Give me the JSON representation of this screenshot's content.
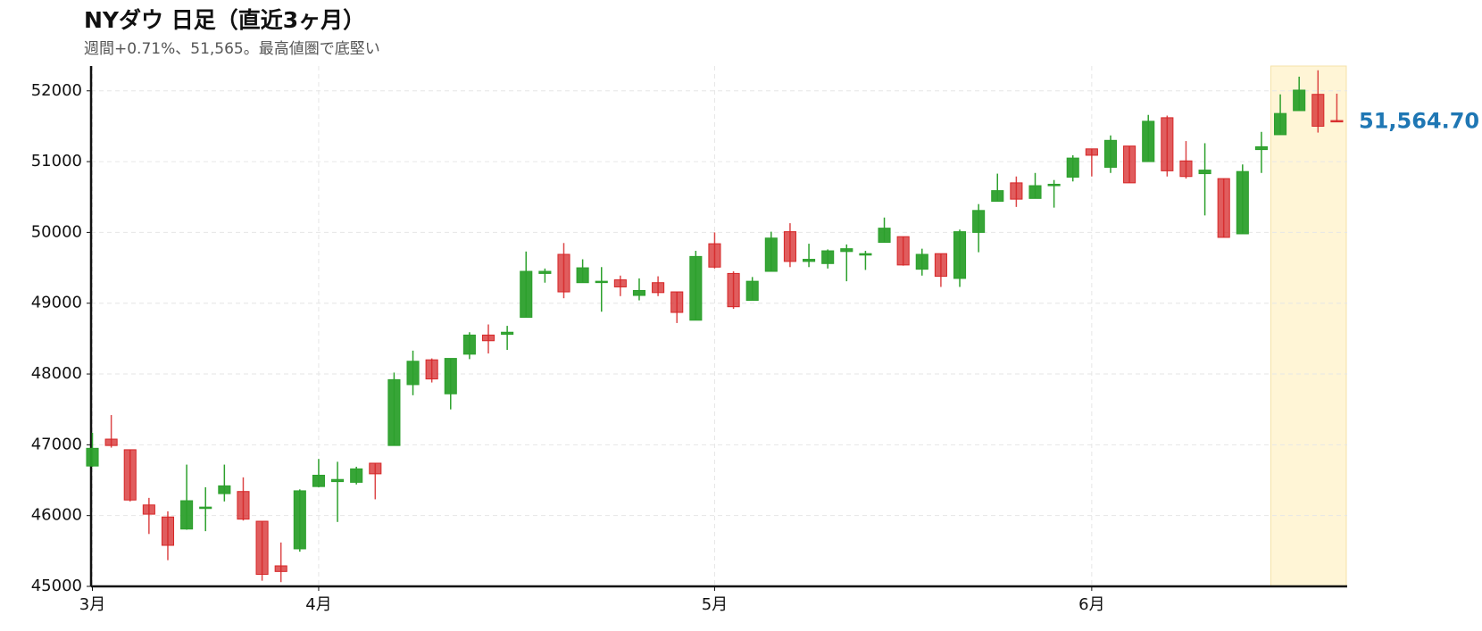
{
  "chart_data": {
    "type": "candlestick",
    "title": "NYダウ 日足（直近3ヶ月）",
    "subtitle": "週間+0.71%、51,565。最高値圏で底堅い",
    "categories": [
      "3月",
      null,
      null,
      null,
      null,
      null,
      null,
      null,
      null,
      null,
      null,
      null,
      "4月",
      null,
      null,
      null,
      null,
      null,
      null,
      null,
      null,
      null,
      null,
      null,
      null,
      null,
      null,
      null,
      null,
      null,
      null,
      null,
      null,
      "5月",
      null,
      null,
      null,
      null,
      null,
      null,
      null,
      null,
      null,
      null,
      null,
      null,
      null,
      null,
      null,
      null,
      null,
      null,
      null,
      "6月",
      null,
      null,
      null,
      null,
      null,
      null,
      null,
      null,
      null,
      null,
      null,
      null,
      null
    ],
    "open": [
      46700,
      47080,
      46930,
      46150,
      45980,
      45810,
      46100,
      46310,
      46340,
      45920,
      45290,
      45530,
      46410,
      46480,
      46470,
      46740,
      46990,
      47850,
      48200,
      47720,
      48280,
      48550,
      48560,
      48800,
      49420,
      49690,
      49290,
      49300,
      49330,
      49110,
      49290,
      49160,
      48760,
      49840,
      49420,
      49040,
      49450,
      50010,
      49590,
      49560,
      49730,
      49680,
      49860,
      49940,
      49480,
      49700,
      49350,
      50000,
      50440,
      50700,
      50480,
      50660,
      50780,
      51180,
      50920,
      51220,
      51000,
      51620,
      51010,
      50830,
      50760,
      49980,
      51170,
      51380,
      51720,
      51950,
      51580
    ],
    "high": [
      47170,
      47420,
      46930,
      46250,
      46060,
      46720,
      46400,
      46720,
      46540,
      45920,
      45620,
      46370,
      46800,
      46760,
      46690,
      46740,
      48020,
      48330,
      48220,
      48220,
      48590,
      48700,
      48680,
      49730,
      49490,
      49850,
      49620,
      49510,
      49390,
      49350,
      49380,
      49160,
      49740,
      50000,
      49450,
      49370,
      50010,
      50130,
      49840,
      49760,
      49830,
      49740,
      50210,
      49940,
      49770,
      49700,
      50040,
      50400,
      50830,
      50790,
      50840,
      50740,
      51090,
      51180,
      51370,
      51220,
      51660,
      51650,
      51290,
      51260,
      50760,
      50960,
      51420,
      51950,
      52200,
      52290,
      51960
    ],
    "low": [
      46690,
      46960,
      46200,
      45740,
      45370,
      45800,
      45780,
      46200,
      45930,
      45080,
      45060,
      45490,
      46400,
      45910,
      46440,
      46230,
      46990,
      47700,
      47880,
      47500,
      48210,
      48290,
      48340,
      48800,
      49290,
      49070,
      49290,
      48880,
      49100,
      49040,
      49100,
      48720,
      48760,
      49490,
      48920,
      49040,
      49450,
      49510,
      49510,
      49490,
      49310,
      49470,
      49860,
      49530,
      49390,
      49230,
      49230,
      49720,
      50440,
      50360,
      50480,
      50350,
      50720,
      50790,
      50840,
      50700,
      51000,
      50790,
      50760,
      50240,
      49930,
      49980,
      50840,
      51380,
      51720,
      51410,
      51565
    ],
    "close": [
      46950,
      46990,
      46220,
      46020,
      45580,
      46210,
      46120,
      46420,
      45950,
      45170,
      45210,
      46350,
      46570,
      46510,
      46660,
      46590,
      47920,
      48180,
      47930,
      48220,
      48550,
      48470,
      48590,
      49450,
      49450,
      49160,
      49500,
      49310,
      49230,
      49180,
      49150,
      48870,
      49660,
      49510,
      48950,
      49310,
      49920,
      49590,
      49620,
      49740,
      49770,
      49700,
      50060,
      49540,
      49690,
      49380,
      50010,
      50310,
      50590,
      50470,
      50660,
      50680,
      51050,
      51090,
      51300,
      50700,
      51570,
      50870,
      50790,
      50880,
      49930,
      50860,
      51210,
      51680,
      52010,
      51500,
      51564.7
    ],
    "up_color": "#2ca02c",
    "down_color": "#d62728",
    "last_price_label": "51,564.70",
    "last_price_color": "#1f77b4",
    "highlight_range": [
      63,
      66
    ],
    "highlight_color": "#fff2cc",
    "ylim": [
      45000,
      52350
    ],
    "yticks": [
      45000,
      46000,
      47000,
      48000,
      49000,
      50000,
      51000,
      52000
    ],
    "grid": true
  }
}
